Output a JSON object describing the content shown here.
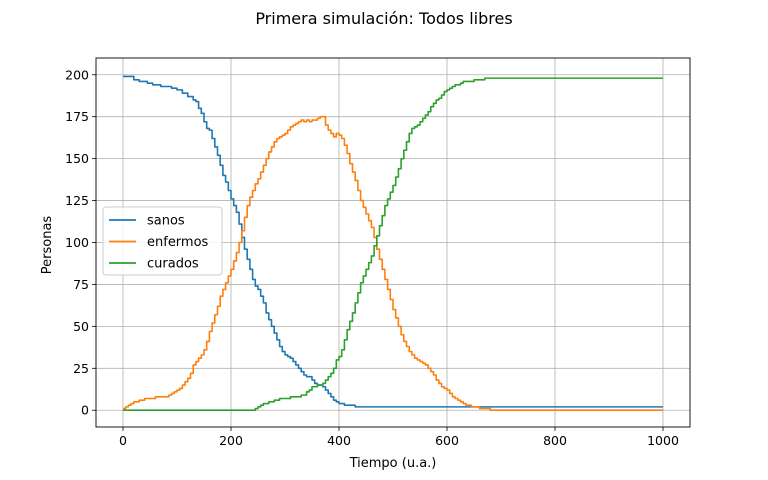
{
  "chart_data": {
    "type": "line",
    "title": "Primera simulación: Todos libres",
    "xlabel": "Tiempo (u.a.)",
    "ylabel": "Personas",
    "xlim": [
      -50,
      1050
    ],
    "ylim": [
      -10,
      210
    ],
    "xticks": [
      0,
      200,
      400,
      600,
      800,
      1000
    ],
    "yticks": [
      0,
      25,
      50,
      75,
      100,
      125,
      150,
      175,
      200
    ],
    "xtick_labels": [
      "0",
      "200",
      "400",
      "600",
      "800",
      "1000"
    ],
    "ytick_labels": [
      "0",
      "25",
      "50",
      "75",
      "100",
      "125",
      "150",
      "175",
      "200"
    ],
    "grid": true,
    "legend_position": "center-left",
    "series": [
      {
        "name": "sanos",
        "color": "#1f77b4",
        "points": [
          [
            0,
            199
          ],
          [
            10,
            199
          ],
          [
            20,
            197
          ],
          [
            30,
            196
          ],
          [
            45,
            195
          ],
          [
            55,
            194
          ],
          [
            70,
            193
          ],
          [
            90,
            192
          ],
          [
            100,
            191
          ],
          [
            110,
            189
          ],
          [
            120,
            187
          ],
          [
            130,
            185
          ],
          [
            135,
            184
          ],
          [
            140,
            180
          ],
          [
            145,
            177
          ],
          [
            150,
            172
          ],
          [
            155,
            168
          ],
          [
            160,
            167
          ],
          [
            165,
            162
          ],
          [
            170,
            157
          ],
          [
            175,
            152
          ],
          [
            180,
            146
          ],
          [
            185,
            140
          ],
          [
            190,
            136
          ],
          [
            195,
            131
          ],
          [
            200,
            126
          ],
          [
            205,
            122
          ],
          [
            210,
            118
          ],
          [
            215,
            111
          ],
          [
            220,
            103
          ],
          [
            225,
            96
          ],
          [
            230,
            90
          ],
          [
            235,
            84
          ],
          [
            240,
            78
          ],
          [
            245,
            74
          ],
          [
            250,
            72
          ],
          [
            255,
            68
          ],
          [
            260,
            64
          ],
          [
            265,
            58
          ],
          [
            270,
            54
          ],
          [
            275,
            50
          ],
          [
            280,
            46
          ],
          [
            285,
            42
          ],
          [
            290,
            38
          ],
          [
            295,
            35
          ],
          [
            300,
            33
          ],
          [
            305,
            32
          ],
          [
            310,
            31
          ],
          [
            315,
            29
          ],
          [
            320,
            27
          ],
          [
            325,
            25
          ],
          [
            330,
            23
          ],
          [
            335,
            21
          ],
          [
            340,
            20
          ],
          [
            350,
            18
          ],
          [
            355,
            16
          ],
          [
            360,
            15
          ],
          [
            370,
            14
          ],
          [
            375,
            12
          ],
          [
            380,
            10
          ],
          [
            385,
            8
          ],
          [
            390,
            6
          ],
          [
            395,
            5
          ],
          [
            400,
            4
          ],
          [
            410,
            3
          ],
          [
            420,
            3
          ],
          [
            430,
            2
          ],
          [
            500,
            2
          ],
          [
            600,
            2
          ],
          [
            700,
            2
          ],
          [
            800,
            2
          ],
          [
            900,
            2
          ],
          [
            1000,
            2
          ]
        ]
      },
      {
        "name": "enfermos",
        "color": "#ff7f0e",
        "points": [
          [
            0,
            1
          ],
          [
            5,
            2
          ],
          [
            10,
            3
          ],
          [
            15,
            4
          ],
          [
            20,
            5
          ],
          [
            30,
            6
          ],
          [
            40,
            7
          ],
          [
            50,
            7
          ],
          [
            60,
            8
          ],
          [
            75,
            8
          ],
          [
            85,
            9
          ],
          [
            90,
            10
          ],
          [
            95,
            11
          ],
          [
            100,
            12
          ],
          [
            105,
            13
          ],
          [
            110,
            15
          ],
          [
            115,
            17
          ],
          [
            120,
            19
          ],
          [
            125,
            22
          ],
          [
            130,
            27
          ],
          [
            135,
            29
          ],
          [
            140,
            31
          ],
          [
            145,
            33
          ],
          [
            150,
            36
          ],
          [
            155,
            41
          ],
          [
            160,
            47
          ],
          [
            165,
            52
          ],
          [
            170,
            57
          ],
          [
            175,
            62
          ],
          [
            180,
            68
          ],
          [
            185,
            72
          ],
          [
            190,
            76
          ],
          [
            195,
            80
          ],
          [
            200,
            84
          ],
          [
            205,
            89
          ],
          [
            210,
            94
          ],
          [
            215,
            100
          ],
          [
            220,
            107
          ],
          [
            225,
            115
          ],
          [
            230,
            122
          ],
          [
            235,
            127
          ],
          [
            240,
            131
          ],
          [
            245,
            135
          ],
          [
            250,
            138
          ],
          [
            255,
            142
          ],
          [
            260,
            146
          ],
          [
            265,
            150
          ],
          [
            270,
            154
          ],
          [
            275,
            157
          ],
          [
            280,
            160
          ],
          [
            285,
            162
          ],
          [
            290,
            163
          ],
          [
            295,
            164
          ],
          [
            300,
            165
          ],
          [
            305,
            167
          ],
          [
            310,
            169
          ],
          [
            315,
            170
          ],
          [
            320,
            171
          ],
          [
            325,
            172
          ],
          [
            330,
            173
          ],
          [
            335,
            172
          ],
          [
            340,
            173
          ],
          [
            345,
            172
          ],
          [
            350,
            173
          ],
          [
            355,
            173
          ],
          [
            360,
            174
          ],
          [
            365,
            175
          ],
          [
            370,
            175
          ],
          [
            375,
            170
          ],
          [
            380,
            167
          ],
          [
            385,
            165
          ],
          [
            390,
            163
          ],
          [
            395,
            165
          ],
          [
            400,
            164
          ],
          [
            405,
            162
          ],
          [
            410,
            158
          ],
          [
            415,
            153
          ],
          [
            420,
            147
          ],
          [
            425,
            142
          ],
          [
            430,
            137
          ],
          [
            435,
            131
          ],
          [
            440,
            125
          ],
          [
            445,
            121
          ],
          [
            450,
            117
          ],
          [
            455,
            113
          ],
          [
            460,
            109
          ],
          [
            465,
            103
          ],
          [
            470,
            96
          ],
          [
            475,
            90
          ],
          [
            480,
            84
          ],
          [
            485,
            78
          ],
          [
            490,
            72
          ],
          [
            495,
            66
          ],
          [
            500,
            60
          ],
          [
            505,
            55
          ],
          [
            510,
            50
          ],
          [
            515,
            45
          ],
          [
            520,
            41
          ],
          [
            525,
            38
          ],
          [
            530,
            35
          ],
          [
            535,
            33
          ],
          [
            540,
            31
          ],
          [
            545,
            30
          ],
          [
            550,
            29
          ],
          [
            555,
            28
          ],
          [
            560,
            27
          ],
          [
            565,
            25
          ],
          [
            570,
            23
          ],
          [
            575,
            21
          ],
          [
            580,
            18
          ],
          [
            585,
            16
          ],
          [
            590,
            14
          ],
          [
            595,
            13
          ],
          [
            600,
            12
          ],
          [
            605,
            10
          ],
          [
            610,
            8
          ],
          [
            615,
            7
          ],
          [
            620,
            6
          ],
          [
            625,
            5
          ],
          [
            630,
            4
          ],
          [
            635,
            3
          ],
          [
            640,
            3
          ],
          [
            645,
            2
          ],
          [
            650,
            2
          ],
          [
            660,
            1
          ],
          [
            670,
            1
          ],
          [
            680,
            0
          ],
          [
            700,
            0
          ],
          [
            800,
            0
          ],
          [
            900,
            0
          ],
          [
            1000,
            0
          ]
        ]
      },
      {
        "name": "curados",
        "color": "#2ca02c",
        "points": [
          [
            0,
            0
          ],
          [
            100,
            0
          ],
          [
            200,
            0
          ],
          [
            240,
            0
          ],
          [
            245,
            1
          ],
          [
            250,
            2
          ],
          [
            255,
            3
          ],
          [
            260,
            4
          ],
          [
            270,
            5
          ],
          [
            280,
            6
          ],
          [
            290,
            7
          ],
          [
            300,
            7
          ],
          [
            310,
            8
          ],
          [
            320,
            8
          ],
          [
            330,
            9
          ],
          [
            340,
            11
          ],
          [
            345,
            12
          ],
          [
            350,
            14
          ],
          [
            360,
            15
          ],
          [
            370,
            16
          ],
          [
            375,
            18
          ],
          [
            380,
            20
          ],
          [
            385,
            22
          ],
          [
            390,
            25
          ],
          [
            395,
            30
          ],
          [
            400,
            32
          ],
          [
            405,
            36
          ],
          [
            410,
            42
          ],
          [
            415,
            48
          ],
          [
            420,
            53
          ],
          [
            425,
            58
          ],
          [
            430,
            64
          ],
          [
            435,
            70
          ],
          [
            440,
            76
          ],
          [
            445,
            80
          ],
          [
            450,
            84
          ],
          [
            455,
            88
          ],
          [
            460,
            92
          ],
          [
            465,
            98
          ],
          [
            470,
            104
          ],
          [
            475,
            110
          ],
          [
            480,
            116
          ],
          [
            485,
            122
          ],
          [
            490,
            126
          ],
          [
            495,
            130
          ],
          [
            500,
            134
          ],
          [
            505,
            139
          ],
          [
            510,
            144
          ],
          [
            515,
            150
          ],
          [
            520,
            155
          ],
          [
            525,
            160
          ],
          [
            530,
            165
          ],
          [
            535,
            168
          ],
          [
            540,
            169
          ],
          [
            545,
            170
          ],
          [
            550,
            172
          ],
          [
            555,
            174
          ],
          [
            560,
            176
          ],
          [
            565,
            178
          ],
          [
            570,
            181
          ],
          [
            575,
            183
          ],
          [
            580,
            185
          ],
          [
            585,
            186
          ],
          [
            590,
            188
          ],
          [
            595,
            190
          ],
          [
            600,
            191
          ],
          [
            605,
            192
          ],
          [
            610,
            193
          ],
          [
            615,
            194
          ],
          [
            620,
            194
          ],
          [
            625,
            195
          ],
          [
            630,
            196
          ],
          [
            640,
            196
          ],
          [
            650,
            197
          ],
          [
            660,
            197
          ],
          [
            670,
            198
          ],
          [
            680,
            198
          ],
          [
            700,
            198
          ],
          [
            800,
            198
          ],
          [
            900,
            198
          ],
          [
            1000,
            198
          ]
        ]
      }
    ]
  }
}
